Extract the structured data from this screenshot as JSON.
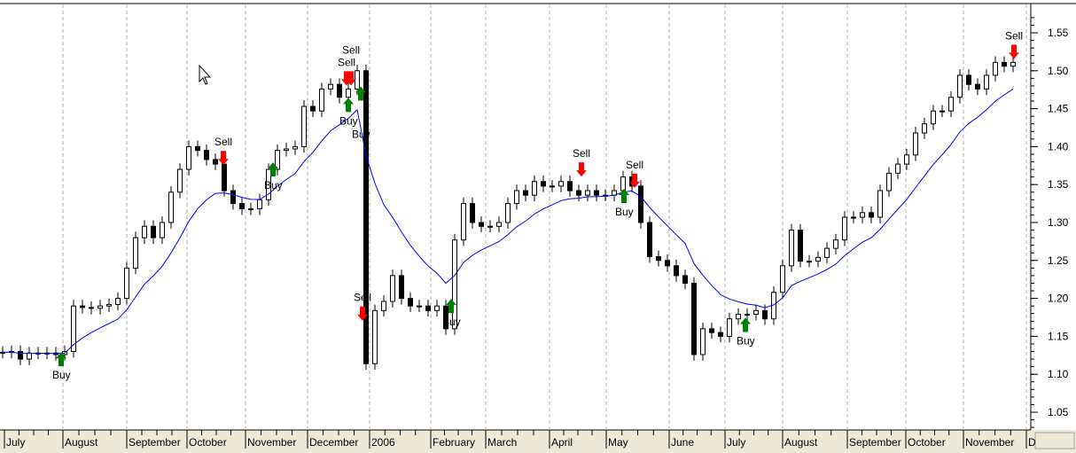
{
  "chart_data": {
    "type": "candlestick",
    "title": "",
    "xlabel": "",
    "ylabel": "",
    "ylim": [
      1.02,
      1.58
    ],
    "yticks": [
      "1.55",
      "1.50",
      "1.45",
      "1.40",
      "1.35",
      "1.30",
      "1.25",
      "1.20",
      "1.15",
      "1.10",
      "1.05"
    ],
    "x_month_labels": [
      "July",
      "August",
      "September",
      "October",
      "November",
      "December",
      "2006",
      "February",
      "March",
      "April",
      "May",
      "June",
      "July",
      "August",
      "September",
      "October",
      "November",
      "D"
    ],
    "grid": "vertical dashed at month boundaries",
    "colors": {
      "bars": "#000000",
      "moving_average": "#0000ff",
      "buy": "#008000",
      "sell": "#ff0000"
    },
    "close": [
      1.129,
      1.13,
      1.12,
      1.128,
      1.128,
      1.128,
      1.126,
      1.13,
      1.19,
      1.188,
      1.187,
      1.19,
      1.192,
      1.2,
      1.24,
      1.28,
      1.295,
      1.28,
      1.3,
      1.34,
      1.37,
      1.4,
      1.395,
      1.383,
      1.377,
      1.342,
      1.325,
      1.318,
      1.318,
      1.33,
      1.37,
      1.395,
      1.397,
      1.4,
      1.453,
      1.447,
      1.476,
      1.482,
      1.465,
      1.476,
      1.5,
      1.114,
      1.184,
      1.196,
      1.23,
      1.2,
      1.19,
      1.19,
      1.184,
      1.19,
      1.16,
      1.277,
      1.325,
      1.3,
      1.295,
      1.295,
      1.3,
      1.325,
      1.342,
      1.336,
      1.354,
      1.348,
      1.348,
      1.354,
      1.342,
      1.336,
      1.342,
      1.336,
      1.336,
      1.342,
      1.36,
      1.348,
      1.3,
      1.255,
      1.25,
      1.243,
      1.23,
      1.22,
      1.126,
      1.16,
      1.155,
      1.15,
      1.173,
      1.179,
      1.179,
      1.184,
      1.173,
      1.208,
      1.243,
      1.29,
      1.249,
      1.249,
      1.254,
      1.266,
      1.277,
      1.307,
      1.307,
      1.313,
      1.307,
      1.342,
      1.365,
      1.377,
      1.389,
      1.418,
      1.43,
      1.447,
      1.447,
      1.465,
      1.494,
      1.482,
      1.476,
      1.494,
      1.511,
      1.506,
      1.511
    ],
    "signals": [
      {
        "type": "buy",
        "label": "Buy",
        "index": 6.6,
        "price": 1.12
      },
      {
        "type": "sell",
        "label": "Sell",
        "index": 24.9,
        "price": 1.385
      },
      {
        "type": "buy",
        "label": "Buy",
        "index": 30.5,
        "price": 1.37
      },
      {
        "type": "sell",
        "label": "Sell",
        "index": 38.8,
        "price": 1.49
      },
      {
        "type": "sell",
        "label": "Sell",
        "index": 39.3,
        "price": 1.49
      },
      {
        "type": "buy",
        "label": "Buy",
        "index": 39.0,
        "price": 1.455
      },
      {
        "type": "buy",
        "label": "Buy",
        "index": 40.4,
        "price": 1.47
      },
      {
        "type": "sell",
        "label": "Sell",
        "index": 40.6,
        "price": 1.18
      },
      {
        "type": "buy",
        "label": "Buy",
        "index": 50.6,
        "price": 1.19
      },
      {
        "type": "sell",
        "label": "Sell",
        "index": 65.3,
        "price": 1.37
      },
      {
        "type": "buy",
        "label": "Buy",
        "index": 70.1,
        "price": 1.335
      },
      {
        "type": "sell",
        "label": "Sell",
        "index": 71.3,
        "price": 1.355
      },
      {
        "type": "buy",
        "label": "Buy",
        "index": 83.8,
        "price": 1.165
      },
      {
        "type": "sell",
        "label": "Sell",
        "index": 114.1,
        "price": 1.525
      }
    ]
  }
}
